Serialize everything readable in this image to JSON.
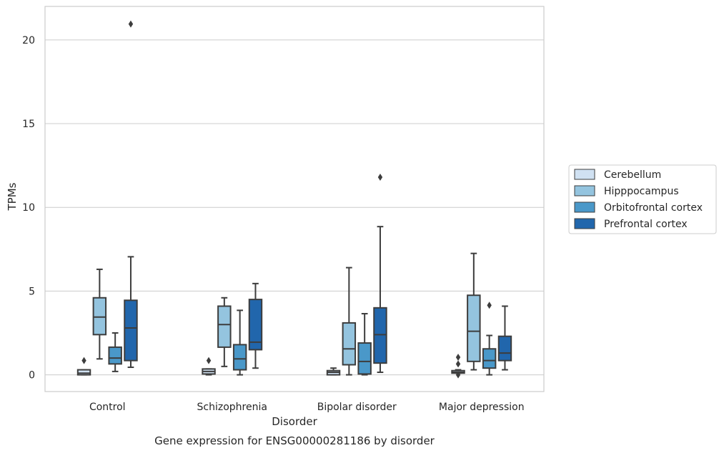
{
  "chart_data": {
    "type": "box",
    "title": "Gene expression for ENSG00000281186 by disorder",
    "xlabel": "Disorder",
    "ylabel": "TPMs",
    "ylim": [
      -1.0,
      22.0
    ],
    "yticks": [
      0,
      5,
      10,
      15,
      20
    ],
    "grid": true,
    "legend_position": "right",
    "categories": [
      "Control",
      "Schizophrenia",
      "Bipolar disorder",
      "Major depression"
    ],
    "series": [
      {
        "name": "Cerebellum",
        "color": "#d0e1f2",
        "boxes": [
          {
            "q1": 0.0,
            "median": 0.1,
            "q3": 0.3,
            "whisker_low": 0.0,
            "whisker_high": 0.3,
            "outliers": [
              0.85
            ]
          },
          {
            "q1": 0.05,
            "median": 0.2,
            "q3": 0.35,
            "whisker_low": 0.0,
            "whisker_high": 0.35,
            "outliers": [
              0.85
            ]
          },
          {
            "q1": 0.0,
            "median": 0.15,
            "q3": 0.25,
            "whisker_low": 0.0,
            "whisker_high": 0.4,
            "outliers": []
          },
          {
            "q1": 0.1,
            "median": 0.15,
            "q3": 0.25,
            "whisker_low": 0.1,
            "whisker_high": 0.3,
            "outliers": [
              0.65,
              1.05,
              0.0
            ]
          }
        ]
      },
      {
        "name": "Hipppocampus",
        "color": "#94c4df",
        "boxes": [
          {
            "q1": 2.4,
            "median": 3.45,
            "q3": 4.6,
            "whisker_low": 0.95,
            "whisker_high": 6.3,
            "outliers": []
          },
          {
            "q1": 1.65,
            "median": 3.0,
            "q3": 4.1,
            "whisker_low": 0.5,
            "whisker_high": 4.6,
            "outliers": []
          },
          {
            "q1": 0.6,
            "median": 1.55,
            "q3": 3.1,
            "whisker_low": 0.0,
            "whisker_high": 6.4,
            "outliers": []
          },
          {
            "q1": 0.8,
            "median": 2.6,
            "q3": 4.75,
            "whisker_low": 0.3,
            "whisker_high": 7.25,
            "outliers": []
          }
        ]
      },
      {
        "name": "Orbitofrontal cortex",
        "color": "#4a98c9",
        "boxes": [
          {
            "q1": 0.65,
            "median": 1.0,
            "q3": 1.65,
            "whisker_low": 0.2,
            "whisker_high": 2.5,
            "outliers": []
          },
          {
            "q1": 0.3,
            "median": 0.95,
            "q3": 1.8,
            "whisker_low": 0.0,
            "whisker_high": 3.85,
            "outliers": []
          },
          {
            "q1": 0.05,
            "median": 0.8,
            "q3": 1.9,
            "whisker_low": 0.0,
            "whisker_high": 3.65,
            "outliers": []
          },
          {
            "q1": 0.4,
            "median": 0.85,
            "q3": 1.55,
            "whisker_low": 0.0,
            "whisker_high": 2.35,
            "outliers": [
              4.15
            ]
          }
        ]
      },
      {
        "name": "Prefrontal cortex",
        "color": "#2166ac",
        "boxes": [
          {
            "q1": 0.85,
            "median": 2.8,
            "q3": 4.45,
            "whisker_low": 0.45,
            "whisker_high": 7.05,
            "outliers": [
              20.95
            ]
          },
          {
            "q1": 1.5,
            "median": 1.95,
            "q3": 4.5,
            "whisker_low": 0.4,
            "whisker_high": 5.45,
            "outliers": []
          },
          {
            "q1": 0.7,
            "median": 2.4,
            "q3": 4.0,
            "whisker_low": 0.15,
            "whisker_high": 8.85,
            "outliers": [
              11.8
            ]
          },
          {
            "q1": 0.85,
            "median": 1.3,
            "q3": 2.3,
            "whisker_low": 0.3,
            "whisker_high": 4.1,
            "outliers": []
          }
        ]
      }
    ]
  }
}
